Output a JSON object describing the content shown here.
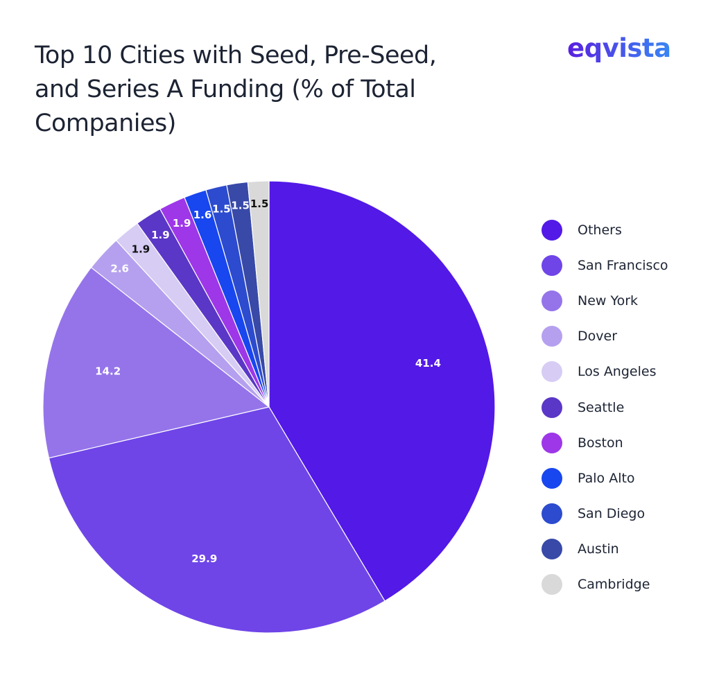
{
  "logo": "eqvista",
  "chart_data": {
    "type": "pie",
    "title": "Top 10 Cities with Seed, Pre-Seed, and Series A Funding (% of Total Companies)",
    "start": "top",
    "direction": "clockwise",
    "legend_position": "right",
    "slices": [
      {
        "label": "Others",
        "value": 41.4,
        "color": "#5319e7",
        "label_color": "#ffffff"
      },
      {
        "label": "San Francisco",
        "value": 29.9,
        "color": "#6f45e8",
        "label_color": "#ffffff"
      },
      {
        "label": "New York",
        "value": 14.2,
        "color": "#9574ea",
        "label_color": "#ffffff"
      },
      {
        "label": "Dover",
        "value": 2.6,
        "color": "#b5a0ef",
        "label_color": "#ffffff"
      },
      {
        "label": "Los Angeles",
        "value": 1.9,
        "color": "#d6ccf4",
        "label_color": "#111111"
      },
      {
        "label": "Seattle",
        "value": 1.9,
        "color": "#5a37c6",
        "label_color": "#ffffff"
      },
      {
        "label": "Boston",
        "value": 1.9,
        "color": "#9d37e8",
        "label_color": "#ffffff"
      },
      {
        "label": "Palo Alto",
        "value": 1.6,
        "color": "#1846ef",
        "label_color": "#ffffff"
      },
      {
        "label": "San Diego",
        "value": 1.5,
        "color": "#2c4bce",
        "label_color": "#ffffff"
      },
      {
        "label": "Austin",
        "value": 1.5,
        "color": "#3849a8",
        "label_color": "#ffffff"
      },
      {
        "label": "Cambridge",
        "value": 1.5,
        "color": "#d9d9d9",
        "label_color": "#111111"
      }
    ]
  }
}
